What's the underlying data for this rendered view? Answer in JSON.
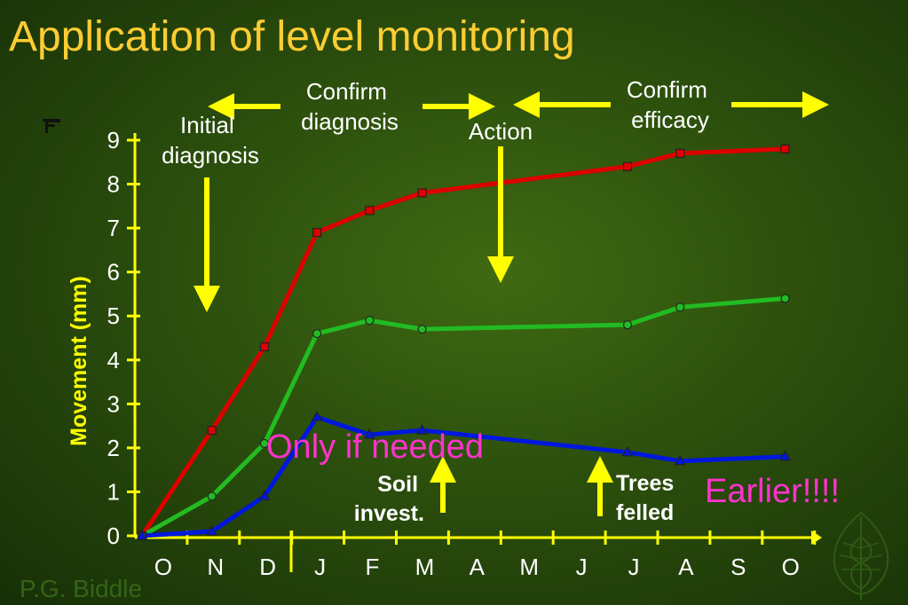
{
  "slide": {
    "title": "Application of level monitoring",
    "author": "P.G. Biddle"
  },
  "colors": {
    "background": "#2c4f0d",
    "title": "#ffcc33",
    "axis": "#ffff00",
    "annotation_arrow": "#ffff00",
    "annotation_text": "#ffffff",
    "highlight_text": "#ff33cc",
    "series_red": "#dd0000",
    "series_green": "#22bb22",
    "series_blue": "#0018dd"
  },
  "annotations": {
    "initial_diagnosis": [
      "Initial",
      "diagnosis"
    ],
    "confirm_diagnosis": [
      "Confirm",
      "diagnosis"
    ],
    "action": "Action",
    "confirm_efficacy": [
      "Confirm",
      "efficacy"
    ],
    "soil_invest": [
      "Soil",
      "invest."
    ],
    "trees_felled": [
      "Trees",
      "felled"
    ],
    "only_if_needed": "Only if needed",
    "earlier": "Earlier!!!!"
  },
  "chart_data": {
    "type": "line",
    "ylabel": "Movement (mm)",
    "xlabel": "",
    "ylim": [
      0,
      9
    ],
    "yticks": [
      "0",
      "1",
      "2",
      "3",
      "4",
      "5",
      "6",
      "7",
      "8",
      "9"
    ],
    "categories": [
      "",
      "O",
      "N",
      "D",
      "J",
      "F",
      "M",
      "A",
      "M",
      "J",
      "J",
      "A",
      "S",
      "O"
    ],
    "grid": false,
    "series": [
      {
        "color": "#dd0000",
        "marker": "square",
        "points": [
          {
            "x": 0,
            "y": 0
          },
          {
            "x": 1.33,
            "y": 2.4
          },
          {
            "x": 2.33,
            "y": 4.3
          },
          {
            "x": 3.33,
            "y": 6.9
          },
          {
            "x": 4.33,
            "y": 7.4
          },
          {
            "x": 5.33,
            "y": 7.8
          },
          {
            "x": 9.24,
            "y": 8.4
          },
          {
            "x": 10.24,
            "y": 8.7
          },
          {
            "x": 12.24,
            "y": 8.8
          }
        ]
      },
      {
        "color": "#22bb22",
        "marker": "circle",
        "points": [
          {
            "x": 0,
            "y": 0
          },
          {
            "x": 1.33,
            "y": 0.9
          },
          {
            "x": 2.33,
            "y": 2.1
          },
          {
            "x": 3.33,
            "y": 4.6
          },
          {
            "x": 4.33,
            "y": 4.9
          },
          {
            "x": 5.33,
            "y": 4.7
          },
          {
            "x": 9.24,
            "y": 4.8
          },
          {
            "x": 10.24,
            "y": 5.2
          },
          {
            "x": 12.24,
            "y": 5.4
          }
        ]
      },
      {
        "color": "#0018dd",
        "marker": "triangle",
        "points": [
          {
            "x": 0,
            "y": 0
          },
          {
            "x": 1.33,
            "y": 0.1
          },
          {
            "x": 2.33,
            "y": 0.9
          },
          {
            "x": 3.33,
            "y": 2.7
          },
          {
            "x": 4.33,
            "y": 2.3
          },
          {
            "x": 5.33,
            "y": 2.4
          },
          {
            "x": 9.24,
            "y": 1.9
          },
          {
            "x": 10.24,
            "y": 1.7
          },
          {
            "x": 12.24,
            "y": 1.8
          }
        ]
      }
    ]
  }
}
